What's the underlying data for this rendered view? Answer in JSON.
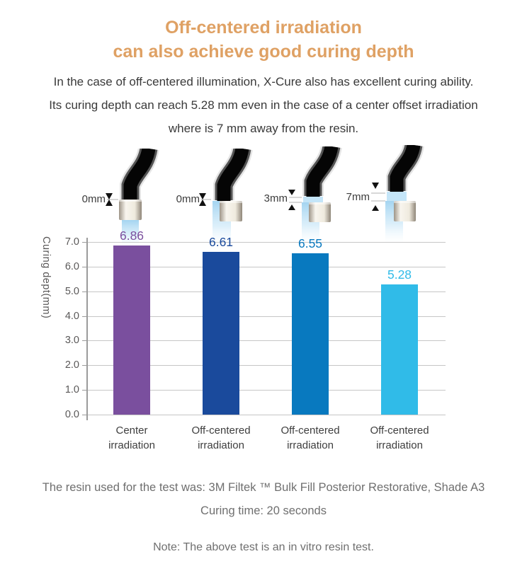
{
  "title": {
    "line1": "Off-centered irradiation",
    "line2": "can also achieve good curing depth"
  },
  "intro": {
    "lines": [
      "In the case of off-centered illumination, X-Cure also has excellent curing ability.",
      "Its curing depth can reach 5.28 mm even in the case of a center offset irradiation",
      "where is 7 mm away from the resin."
    ]
  },
  "tips": [
    {
      "distance_label": "0mm",
      "position": "center",
      "gap_mm": 0
    },
    {
      "distance_label": "0mm",
      "position": "off-center",
      "gap_mm": 0
    },
    {
      "distance_label": "3mm",
      "position": "off-center",
      "gap_mm": 3
    },
    {
      "distance_label": "7mm",
      "position": "off-center",
      "gap_mm": 7
    }
  ],
  "chart_data": {
    "type": "bar",
    "title": "",
    "ylabel": "Curing dept(mm)",
    "xlabel": "",
    "ylim": [
      0,
      7
    ],
    "grid": true,
    "legend": false,
    "yticks": [
      "0.0",
      "1.0",
      "2.0",
      "3.0",
      "4.0",
      "5.0",
      "6.0",
      "7.0"
    ],
    "categories": [
      "Center\nirradiation",
      "Off-centered\nirradiation",
      "Off-centered\nirradiation",
      "Off-centered\nirradiation"
    ],
    "values": [
      6.86,
      6.61,
      6.55,
      5.28
    ],
    "value_labels": [
      "6.86",
      "6.61",
      "6.55",
      "5.28"
    ],
    "bar_colors": [
      "#7a4f9e",
      "#1a4a9c",
      "#0879bf",
      "#30bbe8"
    ]
  },
  "footer": {
    "line1": "The resin used for the test was: 3M Filtek ™ Bulk Fill Posterior Restorative, Shade A3",
    "line2": "Curing time: 20 seconds",
    "note": "Note: The above test is an in vitro resin test."
  },
  "colors": {
    "title_orange": "#dfa164",
    "body_text": "#3a3a3a",
    "axis_text": "#5a5858",
    "grid_gray": "#c6c6c6",
    "footer_gray": "#6f6f6f",
    "bar_purple": "#7a4f9e",
    "bar_navy": "#1a4a9c",
    "bar_blue": "#0879bf",
    "bar_cyan": "#30bbe8"
  }
}
